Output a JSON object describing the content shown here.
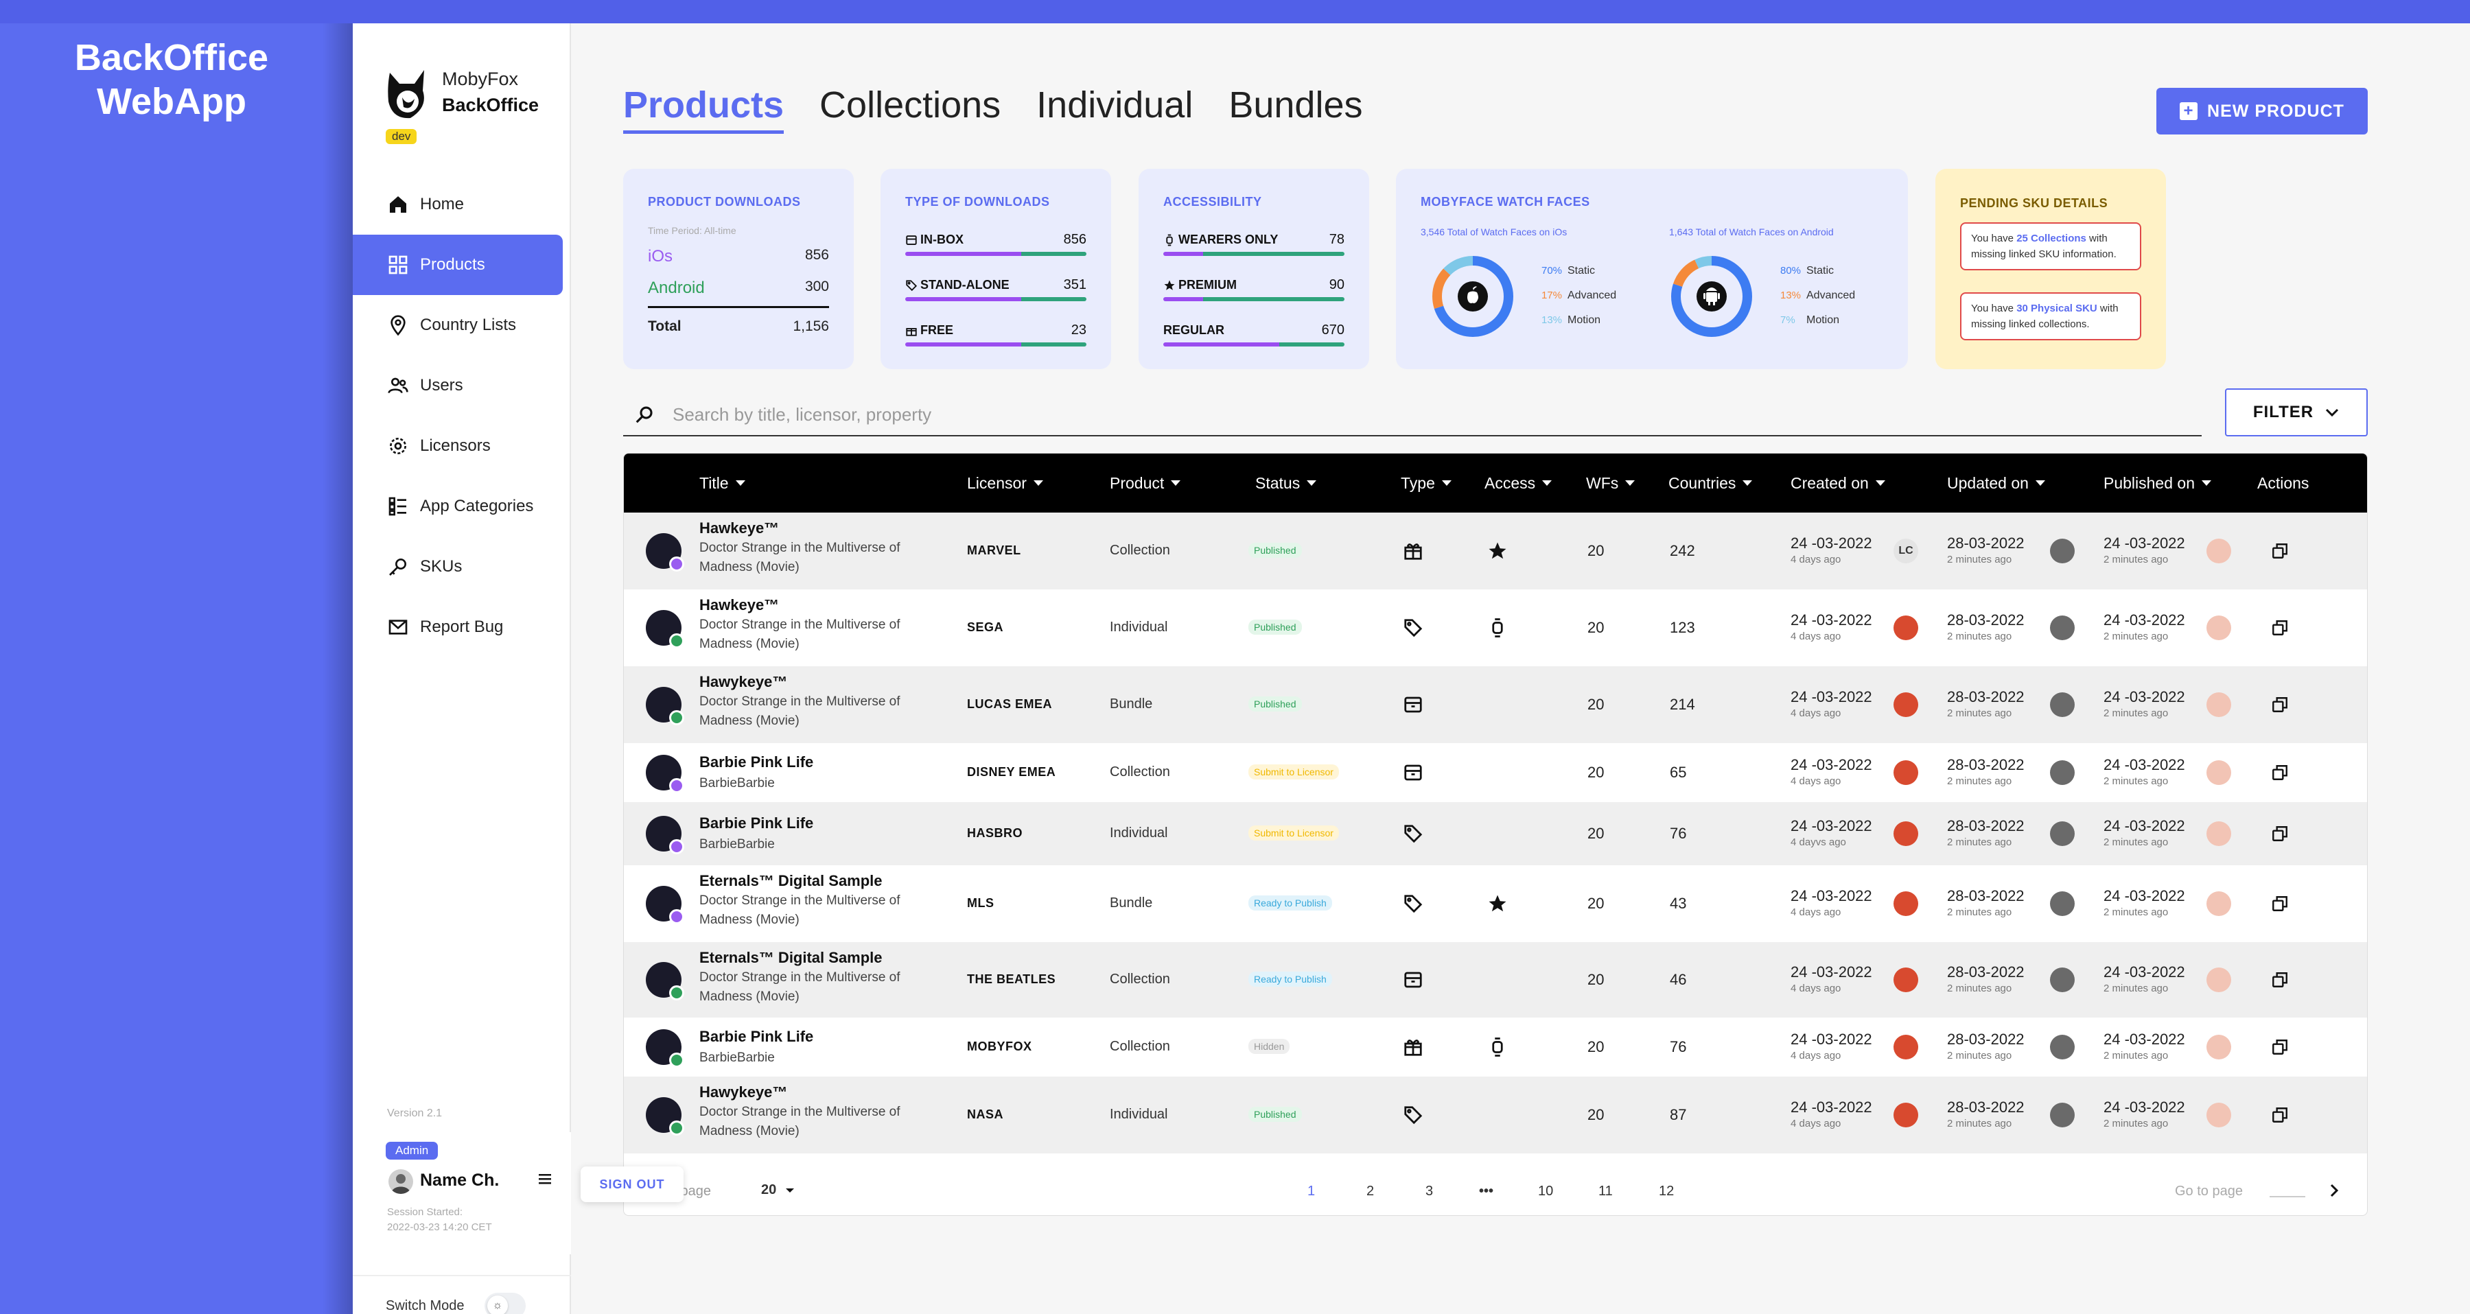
{
  "brand": {
    "line1": "BackOffice",
    "line2": "WebApp"
  },
  "sidebar": {
    "org_name": "MobyFox",
    "org_sub": "BackOffice",
    "env_tag": "dev",
    "items": [
      {
        "label": "Home",
        "icon": "home-icon",
        "active": false
      },
      {
        "label": "Products",
        "icon": "grid-icon",
        "active": true
      },
      {
        "label": "Country Lists",
        "icon": "location-pin-icon",
        "active": false
      },
      {
        "label": "Users",
        "icon": "users-icon",
        "active": false
      },
      {
        "label": "Licensors",
        "icon": "gear-icon",
        "active": false
      },
      {
        "label": "App Categories",
        "icon": "list-icon",
        "active": false
      },
      {
        "label": "SKUs",
        "icon": "key-icon",
        "active": false
      },
      {
        "label": "Report Bug",
        "icon": "mail-icon",
        "active": false
      }
    ],
    "version": "Version 2.1",
    "user": {
      "role": "Admin",
      "name": "Name Ch.",
      "session_label": "Session Started:",
      "session_time": "2022-03-23 14:20 CET"
    },
    "sign_out": "SIGN OUT",
    "switch_mode": "Switch Mode"
  },
  "main": {
    "tabs": [
      {
        "label": "Products",
        "active": true
      },
      {
        "label": "Collections",
        "active": false
      },
      {
        "label": "Individual",
        "active": false
      },
      {
        "label": "Bundles",
        "active": false
      }
    ],
    "new_product_label": "NEW PRODUCT",
    "cards": {
      "downloads": {
        "title": "PRODUCT DOWNLOADS",
        "period": "Time Period: All-time",
        "ios_label": "iOs",
        "ios_value": "856",
        "android_label": "Android",
        "android_value": "300",
        "total_label": "Total",
        "total_value": "1,156"
      },
      "types": {
        "title": "TYPE OF DOWNLOADS",
        "rows": [
          {
            "label": "IN-BOX",
            "value": "856",
            "purple": 0.64,
            "green": 0.36
          },
          {
            "label": "STAND-ALONE",
            "value": "351",
            "purple": 0.64,
            "green": 0.36
          },
          {
            "label": "FREE",
            "value": "23",
            "purple": 0.64,
            "green": 0.36
          }
        ]
      },
      "access": {
        "title": "ACCESSIBILITY",
        "rows": [
          {
            "label": "WEARERS ONLY",
            "value": "78",
            "purple": 0.22,
            "green": 0.78
          },
          {
            "label": "PREMIUM",
            "value": "90",
            "purple": 0.22,
            "green": 0.78
          },
          {
            "label": "REGULAR",
            "value": "670",
            "purple": 0.64,
            "green": 0.36
          }
        ]
      },
      "watchfaces": {
        "title": "MOBYFACE WATCH FACES",
        "ios_sub": "3,546 Total of Watch Faces on iOs",
        "android_sub": "1,643 Total of Watch Faces on Android",
        "ios_legend": [
          {
            "pct": "70%",
            "label": "Static"
          },
          {
            "pct": "17%",
            "label": "Advanced"
          },
          {
            "pct": "13%",
            "label": "Motion"
          }
        ],
        "android_legend": [
          {
            "pct": "80%",
            "label": "Static"
          },
          {
            "pct": "13%",
            "label": "Advanced"
          },
          {
            "pct": "7%",
            "label": "Motion"
          }
        ],
        "colors": {
          "static": "#3d7cf2",
          "advanced": "#f58a3a",
          "motion": "#7ec8e8"
        }
      },
      "sku": {
        "title": "PENDING SKU DETAILS",
        "box1": {
          "pre": "You have ",
          "hl": "25 Collections",
          "post": " with missing linked SKU information."
        },
        "box2": {
          "pre": "You have ",
          "hl": "30 Physical SKU",
          "post": " with missing linked collections."
        }
      }
    },
    "search_placeholder": "Search by title, licensor, property",
    "filter_label": "FILTER",
    "columns": [
      "Title",
      "Licensor",
      "Product",
      "Status",
      "Type",
      "Access",
      "WFs",
      "Countries",
      "Created on",
      "Updated on",
      "Published on",
      "Actions"
    ],
    "rows": [
      {
        "title": "Hawkeye™",
        "sub": "Doctor Strange in the Multiverse of Madness (Movie)",
        "licensor": "MARVEL",
        "product": "Collection",
        "status": "Published",
        "wfs": "20",
        "countries": "242",
        "created": "24 -03-2022",
        "created_ago": "4 days ago",
        "updated": "28-03-2022",
        "updated_ago": "2 minutes ago",
        "published": "24 -03-2022",
        "published_ago": "2 minutes ago",
        "created_avatar": "LC"
      },
      {
        "title": "Hawkeye™",
        "sub": "Doctor Strange in the Multiverse of Madness (Movie)",
        "licensor": "SEGA",
        "product": "Individual",
        "status": "Published",
        "wfs": "20",
        "countries": "123",
        "created": "24 -03-2022",
        "created_ago": "4 days ago",
        "updated": "28-03-2022",
        "updated_ago": "2 minutes ago",
        "published": "24 -03-2022",
        "published_ago": "2 minutes ago"
      },
      {
        "title": "Hawykeye™",
        "sub": "Doctor Strange in the Multiverse of Madness (Movie)",
        "licensor": "LUCAS EMEA",
        "product": "Bundle",
        "status": "Published",
        "wfs": "20",
        "countries": "214",
        "created": "24 -03-2022",
        "created_ago": "4 days ago",
        "updated": "28-03-2022",
        "updated_ago": "2 minutes ago",
        "published": "24 -03-2022",
        "published_ago": "2 minutes ago"
      },
      {
        "title": "Barbie Pink Life",
        "sub": "BarbieBarbie",
        "licensor": "DISNEY EMEA",
        "product": "Collection",
        "status": "Submit to Licensor",
        "wfs": "20",
        "countries": "65",
        "created": "24 -03-2022",
        "created_ago": "4 days ago",
        "updated": "28-03-2022",
        "updated_ago": "2 minutes ago",
        "published": "24 -03-2022",
        "published_ago": "2 minutes ago"
      },
      {
        "title": "Barbie Pink Life",
        "sub": "BarbieBarbie",
        "licensor": "HASBRO",
        "product": "Individual",
        "status": "Submit to Licensor",
        "wfs": "20",
        "countries": "76",
        "created": "24 -03-2022",
        "created_ago": "4 dayvs ago",
        "updated": "28-03-2022",
        "updated_ago": "2 minutes ago",
        "published": "24 -03-2022",
        "published_ago": "2 minutes ago"
      },
      {
        "title": "Eternals™ Digital Sample",
        "sub": "Doctor Strange in the Multiverse of Madness (Movie)",
        "licensor": "MLS",
        "product": "Bundle",
        "status": "Ready to Publish",
        "wfs": "20",
        "countries": "43",
        "created": "24 -03-2022",
        "created_ago": "4 days ago",
        "updated": "28-03-2022",
        "updated_ago": "2 minutes ago",
        "published": "24 -03-2022",
        "published_ago": "2 minutes ago"
      },
      {
        "title": "Eternals™ Digital Sample",
        "sub": "Doctor Strange in the Multiverse of Madness (Movie)",
        "licensor": "THE BEATLES",
        "product": "Collection",
        "status": "Ready to Publish",
        "wfs": "20",
        "countries": "46",
        "created": "24 -03-2022",
        "created_ago": "4 days ago",
        "updated": "28-03-2022",
        "updated_ago": "2 minutes ago",
        "published": "24 -03-2022",
        "published_ago": "2 minutes ago"
      },
      {
        "title": "Barbie Pink Life",
        "sub": "BarbieBarbie",
        "licensor": "MOBYFOX",
        "product": "Collection",
        "status": "Hidden",
        "wfs": "20",
        "countries": "76",
        "created": "24 -03-2022",
        "created_ago": "4 days ago",
        "updated": "28-03-2022",
        "updated_ago": "2 minutes ago",
        "published": "24 -03-2022",
        "published_ago": "2 minutes ago"
      },
      {
        "title": "Hawykeye™",
        "sub": "Doctor Strange in the Multiverse of Madness (Movie)",
        "licensor": "NASA",
        "product": "Individual",
        "status": "Published",
        "wfs": "20",
        "countries": "87",
        "created": "24 -03-2022",
        "created_ago": "4 days ago",
        "updated": "28-03-2022",
        "updated_ago": "2 minutes ago",
        "published": "24 -03-2022",
        "published_ago": "2 minutes ago"
      }
    ],
    "pagination": {
      "per_page_label": "per page",
      "per_page_value": "20",
      "pages": [
        "1",
        "2",
        "3",
        "•••",
        "10",
        "11",
        "12"
      ],
      "current": "1",
      "goto_label": "Go to page"
    }
  }
}
